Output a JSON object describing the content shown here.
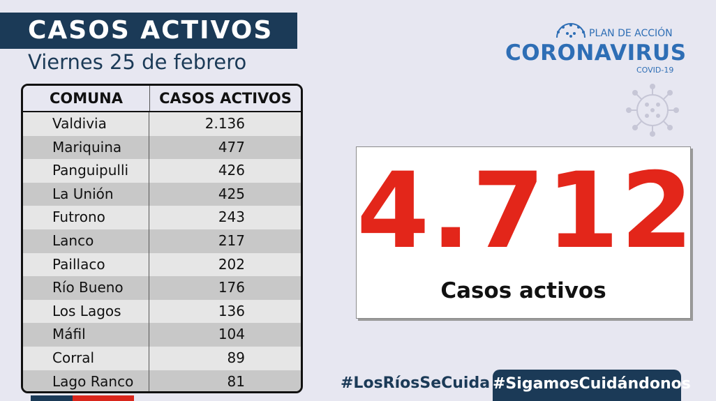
{
  "header": {
    "title": "CASOS ACTIVOS",
    "subtitle": "Viernes 25 de febrero"
  },
  "logo": {
    "plan": "PLAN DE ACCIÓN",
    "name": "CORONAVIRUS",
    "covid": "COVID-19",
    "icon": "virus-icon"
  },
  "table": {
    "columns": [
      "COMUNA",
      "CASOS ACTIVOS"
    ],
    "rows": [
      {
        "comuna": "Valdivia",
        "casos": "2.136"
      },
      {
        "comuna": "Mariquina",
        "casos": "477"
      },
      {
        "comuna": "Panguipulli",
        "casos": "426"
      },
      {
        "comuna": "La Unión",
        "casos": "425"
      },
      {
        "comuna": "Futrono",
        "casos": "243"
      },
      {
        "comuna": "Lanco",
        "casos": "217"
      },
      {
        "comuna": "Paillaco",
        "casos": "202"
      },
      {
        "comuna": "Río Bueno",
        "casos": "176"
      },
      {
        "comuna": "Los Lagos",
        "casos": "136"
      },
      {
        "comuna": "Máfil",
        "casos": "104"
      },
      {
        "comuna": "Corral",
        "casos": "89"
      },
      {
        "comuna": "Lago Ranco",
        "casos": "81"
      }
    ]
  },
  "total": {
    "value": "4.712",
    "label": "Casos activos"
  },
  "hashtags": [
    "#LosRíosSeCuida",
    "#SigamosCuidándonos"
  ],
  "colors": {
    "navy": "#1b3a57",
    "red": "#e3261a",
    "blue": "#2e6eb5",
    "background": "#e7e7f1"
  }
}
